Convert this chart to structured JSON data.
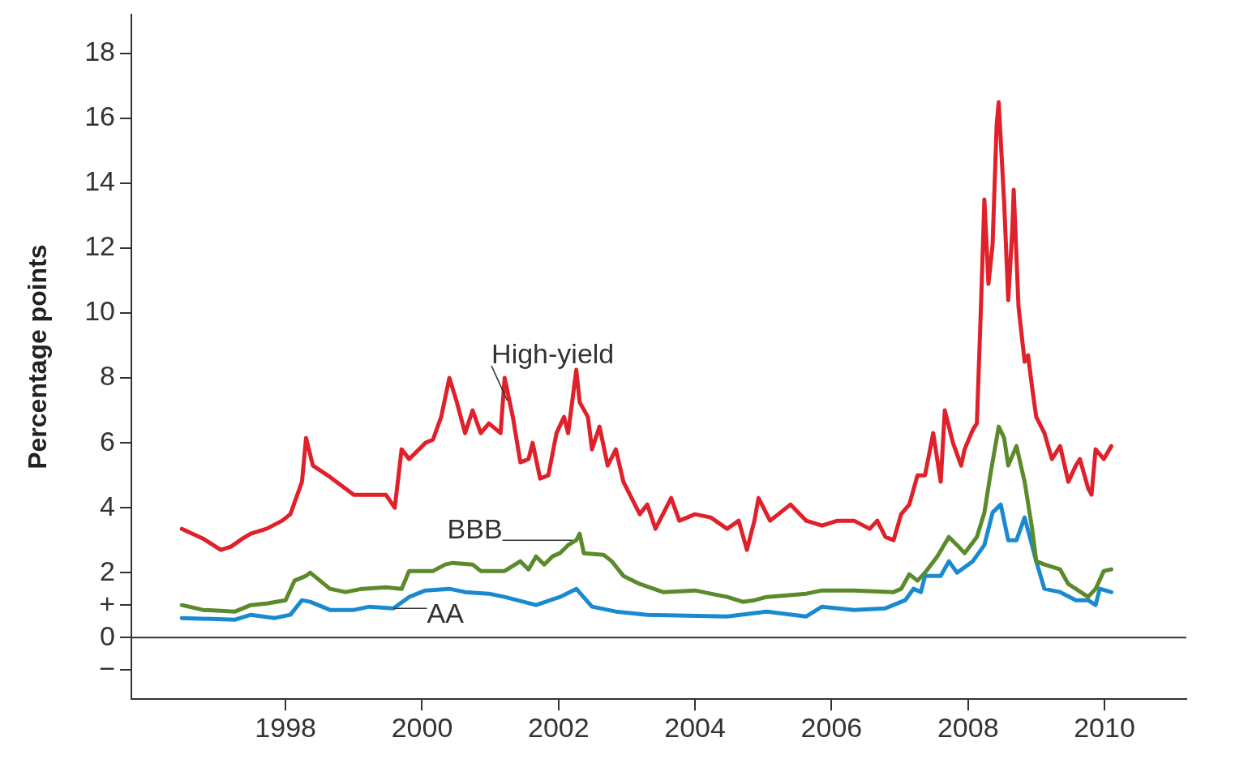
{
  "chart_data": {
    "type": "line",
    "ylabel": "Percentage points",
    "xlim": [
      1995.74,
      2011.2
    ],
    "xticks": [
      1998,
      2000,
      2002,
      2004,
      2006,
      2008,
      2010
    ],
    "ylim": [
      -1.9,
      19.2
    ],
    "yticks": [
      {
        "value": -1,
        "label": "−"
      },
      0,
      {
        "value": 1,
        "label": "+"
      },
      2,
      4,
      6,
      8,
      10,
      12,
      14,
      16,
      18
    ],
    "grid": false,
    "legend": false,
    "marker": "none",
    "line_style": "solid",
    "ref_lines": [
      {
        "axis": "y",
        "value": 0,
        "color": "#333333"
      }
    ],
    "annotations": [
      {
        "text": "High-yield",
        "x": 2001.25,
        "y": 7.3
      },
      {
        "text": "BBB",
        "x": 2002.2,
        "y": 3.0
      },
      {
        "text": "AA",
        "x": 1999.58,
        "y": 0.9
      }
    ],
    "series": [
      {
        "color": "#e0202a",
        "x": [
          1996.48,
          1996.79,
          1997.05,
          1997.2,
          1997.37,
          1997.49,
          1997.72,
          1997.95,
          1998.07,
          1998.24,
          1998.3,
          1998.4,
          1998.65,
          1999.0,
          1999.47,
          1999.6,
          1999.7,
          1999.81,
          2000.05,
          2000.16,
          2000.28,
          2000.4,
          2000.51,
          2000.63,
          2000.74,
          2000.86,
          2000.98,
          2001.15,
          2001.21,
          2001.33,
          2001.44,
          2001.56,
          2001.62,
          2001.73,
          2001.85,
          2001.97,
          2002.08,
          2002.14,
          2002.26,
          2002.31,
          2002.43,
          2002.49,
          2002.6,
          2002.72,
          2002.84,
          2002.95,
          2003.07,
          2003.19,
          2003.3,
          2003.42,
          2003.65,
          2003.77,
          2004.0,
          2004.23,
          2004.47,
          2004.64,
          2004.76,
          2004.87,
          2004.93,
          2005.1,
          2005.4,
          2005.63,
          2005.86,
          2006.09,
          2006.33,
          2006.56,
          2006.67,
          2006.79,
          2006.91,
          2007.02,
          2007.14,
          2007.26,
          2007.37,
          2007.49,
          2007.6,
          2007.66,
          2007.78,
          2007.9,
          2007.95,
          2008.07,
          2008.13,
          2008.19,
          2008.24,
          2008.3,
          2008.36,
          2008.42,
          2008.45,
          2008.53,
          2008.59,
          2008.65,
          2008.67,
          2008.74,
          2008.83,
          2008.88,
          2008.94,
          2009.0,
          2009.12,
          2009.23,
          2009.35,
          2009.47,
          2009.58,
          2009.64,
          2009.76,
          2009.81,
          2009.87,
          2009.99,
          2010.1
        ],
        "values": [
          3.35,
          3.05,
          2.7,
          2.8,
          3.05,
          3.2,
          3.35,
          3.6,
          3.8,
          4.8,
          6.15,
          5.3,
          4.95,
          4.4,
          4.4,
          4.0,
          5.8,
          5.5,
          6.0,
          6.1,
          6.8,
          8.0,
          7.25,
          6.3,
          7.0,
          6.3,
          6.6,
          6.3,
          8.0,
          6.8,
          5.4,
          5.5,
          6.0,
          4.9,
          5.0,
          6.3,
          6.8,
          6.3,
          8.25,
          7.25,
          6.8,
          5.8,
          6.5,
          5.3,
          5.8,
          4.8,
          4.3,
          3.8,
          4.1,
          3.35,
          4.3,
          3.6,
          3.8,
          3.7,
          3.35,
          3.6,
          2.7,
          3.6,
          4.3,
          3.6,
          4.1,
          3.6,
          3.45,
          3.6,
          3.6,
          3.35,
          3.6,
          3.1,
          3.0,
          3.8,
          4.1,
          5.0,
          5.0,
          6.3,
          4.8,
          7.0,
          6.0,
          5.3,
          5.8,
          6.4,
          6.6,
          10.2,
          13.5,
          10.9,
          12.1,
          15.8,
          16.5,
          13.4,
          10.4,
          12.6,
          13.8,
          10.2,
          8.5,
          8.7,
          7.7,
          6.8,
          6.3,
          5.5,
          5.9,
          4.8,
          5.3,
          5.5,
          4.6,
          4.4,
          5.8,
          5.5,
          5.9
        ]
      },
      {
        "color": "#5a8a2a",
        "x": [
          1996.48,
          1996.79,
          1997.26,
          1997.49,
          1997.72,
          1998.0,
          1998.13,
          1998.3,
          1998.36,
          1998.65,
          1998.88,
          1999.12,
          1999.47,
          1999.7,
          1999.81,
          2000.16,
          2000.34,
          2000.45,
          2000.74,
          2000.86,
          2001.21,
          2001.44,
          2001.56,
          2001.67,
          2001.79,
          2001.91,
          2002.02,
          2002.14,
          2002.26,
          2002.31,
          2002.37,
          2002.66,
          2002.78,
          2002.95,
          2003.19,
          2003.53,
          2004.0,
          2004.23,
          2004.47,
          2004.7,
          2004.87,
          2005.05,
          2005.63,
          2005.86,
          2006.33,
          2006.91,
          2007.02,
          2007.14,
          2007.26,
          2007.37,
          2007.55,
          2007.72,
          2007.84,
          2007.95,
          2008.13,
          2008.24,
          2008.33,
          2008.45,
          2008.53,
          2008.59,
          2008.71,
          2008.83,
          2008.94,
          2009.0,
          2009.12,
          2009.35,
          2009.47,
          2009.58,
          2009.76,
          2009.87,
          2009.99,
          2010.1
        ],
        "values": [
          1.0,
          0.85,
          0.8,
          1.0,
          1.05,
          1.15,
          1.75,
          1.9,
          2.0,
          1.5,
          1.4,
          1.5,
          1.55,
          1.5,
          2.05,
          2.05,
          2.25,
          2.3,
          2.25,
          2.05,
          2.05,
          2.35,
          2.1,
          2.5,
          2.25,
          2.5,
          2.6,
          2.85,
          3.0,
          3.2,
          2.6,
          2.55,
          2.35,
          1.9,
          1.65,
          1.4,
          1.45,
          1.35,
          1.25,
          1.1,
          1.15,
          1.25,
          1.35,
          1.45,
          1.45,
          1.4,
          1.5,
          1.95,
          1.75,
          2.0,
          2.5,
          3.1,
          2.85,
          2.6,
          3.1,
          3.85,
          5.05,
          6.5,
          6.15,
          5.3,
          5.9,
          4.8,
          3.35,
          2.35,
          2.25,
          2.1,
          1.65,
          1.5,
          1.25,
          1.5,
          2.05,
          2.1
        ]
      },
      {
        "color": "#1a8ad0",
        "x": [
          1996.48,
          1997.26,
          1997.49,
          1997.84,
          1998.07,
          1998.24,
          1998.36,
          1998.65,
          1999.0,
          1999.23,
          1999.58,
          1999.81,
          2000.05,
          2000.4,
          2000.63,
          2000.98,
          2001.21,
          2001.67,
          2002.02,
          2002.26,
          2002.49,
          2002.84,
          2003.3,
          2004.47,
          2005.05,
          2005.63,
          2005.86,
          2006.33,
          2006.79,
          2007.08,
          2007.2,
          2007.31,
          2007.37,
          2007.6,
          2007.72,
          2007.84,
          2008.07,
          2008.24,
          2008.36,
          2008.48,
          2008.59,
          2008.71,
          2008.83,
          2009.0,
          2009.12,
          2009.35,
          2009.58,
          2009.76,
          2009.87,
          2009.93,
          2010.1
        ],
        "values": [
          0.6,
          0.55,
          0.7,
          0.6,
          0.7,
          1.15,
          1.1,
          0.85,
          0.85,
          0.95,
          0.9,
          1.25,
          1.45,
          1.5,
          1.4,
          1.35,
          1.25,
          1.0,
          1.25,
          1.5,
          0.95,
          0.8,
          0.7,
          0.65,
          0.8,
          0.65,
          0.95,
          0.85,
          0.9,
          1.15,
          1.5,
          1.4,
          1.9,
          1.9,
          2.35,
          2.0,
          2.35,
          2.85,
          3.85,
          4.1,
          3.0,
          3.0,
          3.7,
          2.35,
          1.5,
          1.4,
          1.15,
          1.15,
          1.0,
          1.5,
          1.4
        ]
      }
    ]
  }
}
